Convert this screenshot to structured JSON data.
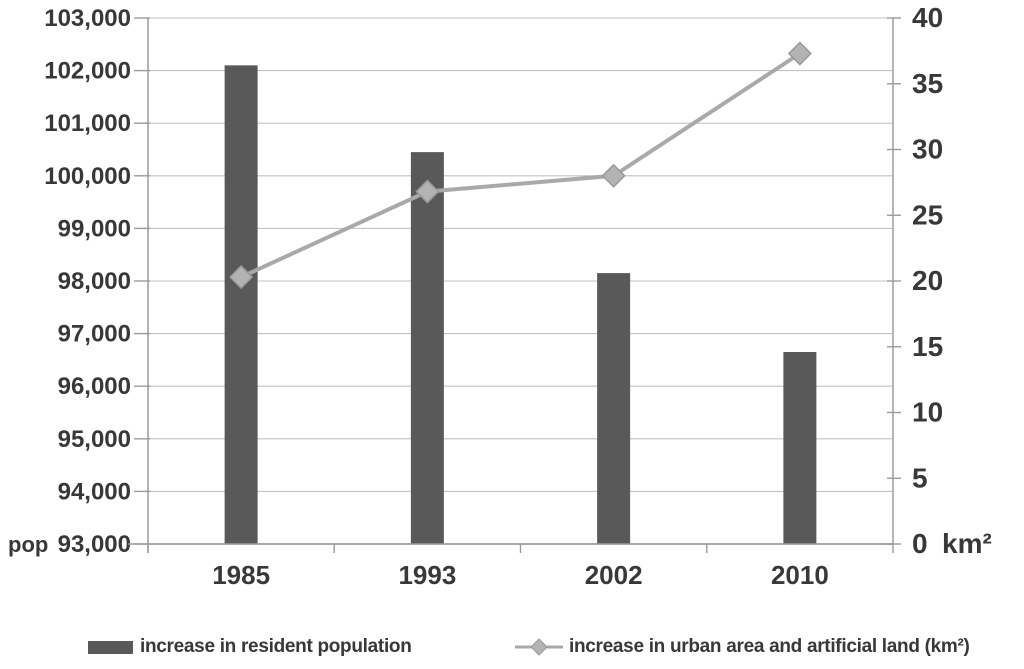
{
  "chart_data": {
    "type": "combo (bar + line)",
    "categories": [
      "1985",
      "1993",
      "2002",
      "2010"
    ],
    "series": [
      {
        "name": "increase in resident population",
        "type": "bar",
        "axis": "left",
        "values": [
          102100,
          100450,
          98150,
          96650
        ],
        "color": "#595959"
      },
      {
        "name": "increase in urban area and artificial land (km²)",
        "type": "line",
        "axis": "right",
        "marker": "diamond",
        "values": [
          20.3,
          26.8,
          28.0,
          37.3
        ],
        "color": "#a9a9a9"
      }
    ],
    "left_axis": {
      "unit_label": "pop",
      "min": 93000,
      "max": 103000,
      "step": 1000,
      "tick_labels": [
        "103,000",
        "102,000",
        "101,000",
        "100,000",
        "99,000",
        "98,000",
        "97,000",
        "96,000",
        "95,000",
        "94,000",
        "93,000"
      ]
    },
    "right_axis": {
      "unit_label": "km²",
      "min": 0,
      "max": 40,
      "step": 5,
      "tick_labels": [
        "40",
        "35",
        "30",
        "25",
        "20",
        "15",
        "10",
        "5",
        "0"
      ]
    },
    "grid": true,
    "legend_position": "bottom",
    "title": ""
  },
  "colors": {
    "bar": "#595959",
    "line": "#a9a9a9",
    "marker_fill": "#b3b3b3",
    "marker_edge": "#9a9a9a",
    "gridline": "#c2c2c2",
    "axis": "#9b9b9b",
    "text": "#383838"
  }
}
